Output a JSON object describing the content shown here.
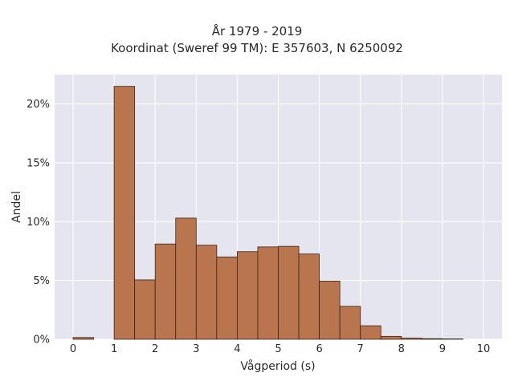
{
  "chart_data": {
    "type": "bar",
    "title": "År 1979 - 2019",
    "subtitle": "Koordinat (Sweref 99 TM): E 357603, N 6250092",
    "xlabel": "Vågperiod (s)",
    "ylabel": "Andel",
    "xlim": [
      -0.45,
      10.45
    ],
    "ylim": [
      0,
      22.5
    ],
    "x_ticks": [
      0,
      1,
      2,
      3,
      4,
      5,
      6,
      7,
      8,
      9,
      10
    ],
    "y_ticks": [
      0,
      5,
      10,
      15,
      20
    ],
    "y_tick_labels": [
      "0%",
      "5%",
      "10%",
      "15%",
      "20%"
    ],
    "bin_width": 0.5,
    "bins": [
      {
        "start": 0.0,
        "end": 0.5,
        "value": 0.15
      },
      {
        "start": 1.0,
        "end": 1.5,
        "value": 21.5
      },
      {
        "start": 1.5,
        "end": 2.0,
        "value": 5.05
      },
      {
        "start": 2.0,
        "end": 2.5,
        "value": 8.1
      },
      {
        "start": 2.5,
        "end": 3.0,
        "value": 10.3
      },
      {
        "start": 3.0,
        "end": 3.5,
        "value": 8.0
      },
      {
        "start": 3.5,
        "end": 4.0,
        "value": 7.0
      },
      {
        "start": 4.0,
        "end": 4.5,
        "value": 7.45
      },
      {
        "start": 4.5,
        "end": 5.0,
        "value": 7.85
      },
      {
        "start": 5.0,
        "end": 5.5,
        "value": 7.9
      },
      {
        "start": 5.5,
        "end": 6.0,
        "value": 7.25
      },
      {
        "start": 6.0,
        "end": 6.5,
        "value": 4.95
      },
      {
        "start": 6.5,
        "end": 7.0,
        "value": 2.8
      },
      {
        "start": 7.0,
        "end": 7.5,
        "value": 1.15
      },
      {
        "start": 7.5,
        "end": 8.0,
        "value": 0.25
      },
      {
        "start": 8.0,
        "end": 8.5,
        "value": 0.1
      },
      {
        "start": 8.5,
        "end": 9.0,
        "value": 0.05
      },
      {
        "start": 9.0,
        "end": 9.5,
        "value": 0.03
      }
    ],
    "grid": true,
    "colors": {
      "bar_fill": "#b9754d",
      "bar_edge": "#3a2418",
      "plot_background": "#e5e5f0",
      "grid": "#ffffff"
    }
  }
}
